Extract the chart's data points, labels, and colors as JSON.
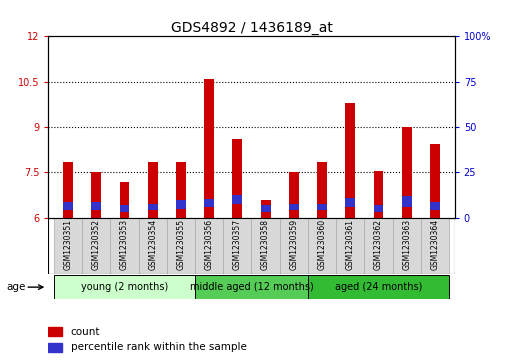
{
  "title": "GDS4892 / 1436189_at",
  "samples": [
    "GSM1230351",
    "GSM1230352",
    "GSM1230353",
    "GSM1230354",
    "GSM1230355",
    "GSM1230356",
    "GSM1230357",
    "GSM1230358",
    "GSM1230359",
    "GSM1230360",
    "GSM1230361",
    "GSM1230362",
    "GSM1230363",
    "GSM1230364"
  ],
  "count_values": [
    7.85,
    7.5,
    7.2,
    7.85,
    7.85,
    10.6,
    8.6,
    6.6,
    7.5,
    7.85,
    9.8,
    7.55,
    9.0,
    8.45
  ],
  "percentile_bottom": [
    6.25,
    6.25,
    6.2,
    6.25,
    6.3,
    6.35,
    6.45,
    6.2,
    6.25,
    6.25,
    6.35,
    6.2,
    6.35,
    6.25
  ],
  "percentile_heights": [
    0.28,
    0.28,
    0.22,
    0.22,
    0.28,
    0.28,
    0.32,
    0.22,
    0.22,
    0.22,
    0.32,
    0.22,
    0.38,
    0.28
  ],
  "ymin": 6,
  "ymax": 12,
  "yticks_left": [
    6,
    7.5,
    9,
    10.5,
    12
  ],
  "ytick_labels_left": [
    "6",
    "7.5",
    "9",
    "10.5",
    "12"
  ],
  "right_ytick_positions": [
    6.0,
    7.5,
    9.0,
    10.5,
    12.0
  ],
  "right_ytick_labels": [
    "0",
    "25",
    "50",
    "75",
    "100%"
  ],
  "bar_color": "#cc0000",
  "percentile_color": "#3333cc",
  "bar_width": 0.35,
  "groups": [
    {
      "label": "young (2 months)",
      "start": 0,
      "end": 4,
      "color": "#ccffcc"
    },
    {
      "label": "middle aged (12 months)",
      "start": 5,
      "end": 8,
      "color": "#55cc55"
    },
    {
      "label": "aged (24 months)",
      "start": 9,
      "end": 13,
      "color": "#33bb33"
    }
  ],
  "age_label": "age",
  "legend_count_label": "count",
  "legend_percentile_label": "percentile rank within the sample",
  "background_color": "#ffffff",
  "plot_bg_color": "#ffffff",
  "sample_box_color": "#d8d8d8",
  "sample_box_edge": "#aaaaaa",
  "grid_linestyle": "dotted",
  "title_fontsize": 10,
  "tick_fontsize": 7,
  "sample_fontsize": 5.5,
  "group_fontsize": 7,
  "legend_fontsize": 7.5
}
